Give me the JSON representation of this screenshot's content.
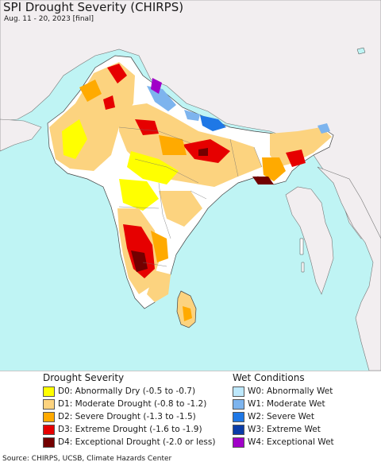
{
  "header": {
    "title": "SPI Drought Severity (CHIRPS)",
    "subtitle": "Aug. 11 - 20, 2023 [final]"
  },
  "colors": {
    "ocean": "#bff4f4",
    "land_outside": "#f2eef0",
    "neutral_land": "#ffffff",
    "border": "#555555"
  },
  "legend": {
    "drought": {
      "heading": "Drought Severity",
      "items": [
        {
          "label": "D0: Abnormally Dry (-0.5 to -0.7)",
          "color": "#ffff00"
        },
        {
          "label": "D1: Moderate Drought (-0.8 to -1.2)",
          "color": "#fcd37f"
        },
        {
          "label": "D2: Severe Drought (-1.3 to -1.5)",
          "color": "#ffaa00"
        },
        {
          "label": "D3: Extreme Drought (-1.6 to -1.9)",
          "color": "#e60000"
        },
        {
          "label": "D4: Exceptional Drought (-2.0 or less)",
          "color": "#730000"
        }
      ]
    },
    "wet": {
      "heading": "Wet Conditions",
      "items": [
        {
          "label": "W0: Abnormally Wet",
          "color": "#bde8fc"
        },
        {
          "label": "W1: Moderate Wet",
          "color": "#7db4ee"
        },
        {
          "label": "W2: Severe Wet",
          "color": "#1f78e6"
        },
        {
          "label": "W3: Extreme Wet",
          "color": "#0a3ca8"
        },
        {
          "label": "W4: Exceptional Wet",
          "color": "#a000c8"
        }
      ]
    }
  },
  "footer": {
    "source": "Source: CHIRPS, UCSB, Climate Hazards Center"
  }
}
